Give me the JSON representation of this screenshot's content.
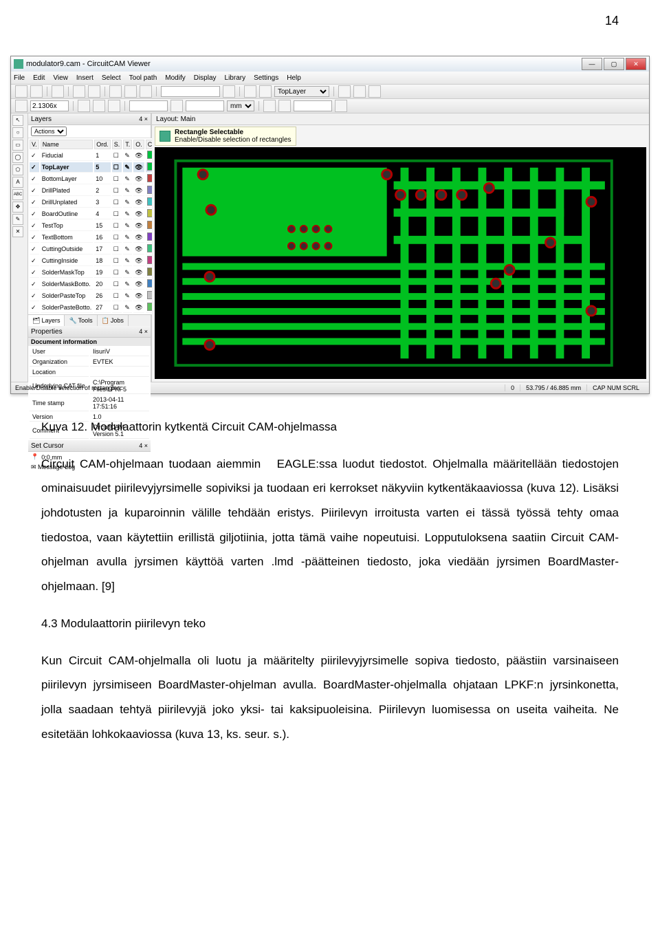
{
  "page_number": "14",
  "window": {
    "title": "modulator9.cam - CircuitCAM Viewer",
    "menu": [
      "File",
      "Edit",
      "View",
      "Insert",
      "Select",
      "Tool path",
      "Modify",
      "Display",
      "Library",
      "Settings",
      "Help"
    ],
    "zoom": "2.1306x",
    "layer_sel": "TopLayer",
    "unit": "mm"
  },
  "layers_panel": {
    "title": "Layers",
    "pin": "4 ×",
    "actions": "Actions",
    "cols": [
      "V.",
      "Name",
      "Ord.",
      "S.",
      "T.",
      "O.",
      "C."
    ],
    "rows": [
      {
        "name": "Fiducial",
        "ord": "1",
        "color": "#00c040"
      },
      {
        "name": "TopLayer",
        "ord": "5",
        "color": "#00c040",
        "sel": true
      },
      {
        "name": "BottomLayer",
        "ord": "10",
        "color": "#c04040"
      },
      {
        "name": "DrillPlated",
        "ord": "2",
        "color": "#8080c0"
      },
      {
        "name": "DrillUnplated",
        "ord": "3",
        "color": "#40c0c0"
      },
      {
        "name": "BoardOutline",
        "ord": "4",
        "color": "#c0c040"
      },
      {
        "name": "TestTop",
        "ord": "15",
        "color": "#c08040"
      },
      {
        "name": "TextBottom",
        "ord": "16",
        "color": "#8040c0"
      },
      {
        "name": "CuttingOutside",
        "ord": "17",
        "color": "#40c080"
      },
      {
        "name": "CuttingInside",
        "ord": "18",
        "color": "#c04080"
      },
      {
        "name": "SolderMaskTop",
        "ord": "19",
        "color": "#808040"
      },
      {
        "name": "SolderMaskBotto.",
        "ord": "20",
        "color": "#4080c0"
      },
      {
        "name": "SolderPasteTop",
        "ord": "26",
        "color": "#c0c0c0"
      },
      {
        "name": "SolderPasteBotto.",
        "ord": "27",
        "color": "#60c060"
      }
    ],
    "tabs": [
      "Layers",
      "Tools",
      "Jobs"
    ]
  },
  "properties": {
    "title": "Properties",
    "pin": "4 ×",
    "section": "Document information",
    "rows": [
      [
        "User",
        "IisuriV"
      ],
      [
        "Organization",
        "EVTEK"
      ],
      [
        "Location",
        ""
      ],
      [
        "Underlying CAT file",
        "C:\\Program Files\\LPKF5"
      ],
      [
        "Time stamp",
        "2013-04-11 17:51:16"
      ],
      [
        "Version",
        "1.0"
      ],
      [
        "Comment",
        "CircuitCAM Version 5.1"
      ]
    ]
  },
  "set_cursor": {
    "title": "Set Cursor",
    "pin": "4 ×",
    "value": "0;0 mm"
  },
  "msglog": "Message Log",
  "layout_hdr": "Layout: Main",
  "tooltip": {
    "title": "Rectangle Selectable",
    "sub": "Enable/Disable selection of rectangles"
  },
  "status": {
    "left": "Enable/Disable selection of rectangles",
    "n": "0",
    "coord": "53.795 / 46.885 mm",
    "caps": "CAP  NUM  SCRL"
  },
  "pcb": {
    "bg": "#000000",
    "trace": "#00c020",
    "outline": "#008018",
    "pad_ring": "#b00000",
    "pad_fill": "#303030"
  },
  "text": {
    "caption": "Kuva 12. Modulaattorin kytkentä Circuit CAM-ohjelmassa",
    "p1a": "Circuit CAM-ohjelmaan tuodaan aiemmin",
    "p1b": "EAGLE:ssa luodut tiedostot. Ohjelmalla",
    "p1c": "määritellään tiedostojen ominaisuudet piirilevyjyrsimelle sopiviksi ja tuodaan eri kerrokset näkyviin kytkentäkaaviossa (kuva 12). Lisäksi johdotusten ja kuparoinnin välille tehdään eristys. Piirilevyn irroitusta varten ei tässä työssä tehty omaa tiedostoa, vaan käytettiin erillistä giljotiinia, jotta tämä vaihe nopeutuisi. Lopputuloksena saatiin Circuit CAM-ohjelman avulla jyrsimen käyttöä varten .lmd -päätteinen tiedosto, joka viedään jyrsimen BoardMaster-ohjelmaan. [9]",
    "section": "4.3    Modulaattorin piirilevyn teko",
    "p2": "Kun Circuit CAM-ohjelmalla oli luotu ja määritelty piirilevyjyrsimelle sopiva tiedosto, päästiin varsinaiseen piirilevyn jyrsimiseen BoardMaster-ohjelman avulla. BoardMaster-ohjelmalla ohjataan LPKF:n jyrsinkonetta, jolla saadaan tehtyä piirilevyjä joko yksi- tai kaksipuoleisina. Piirilevyn luomisessa on useita vaiheita. Ne esitetään lohkokaaviossa (kuva 13, ks. seur. s.)."
  }
}
